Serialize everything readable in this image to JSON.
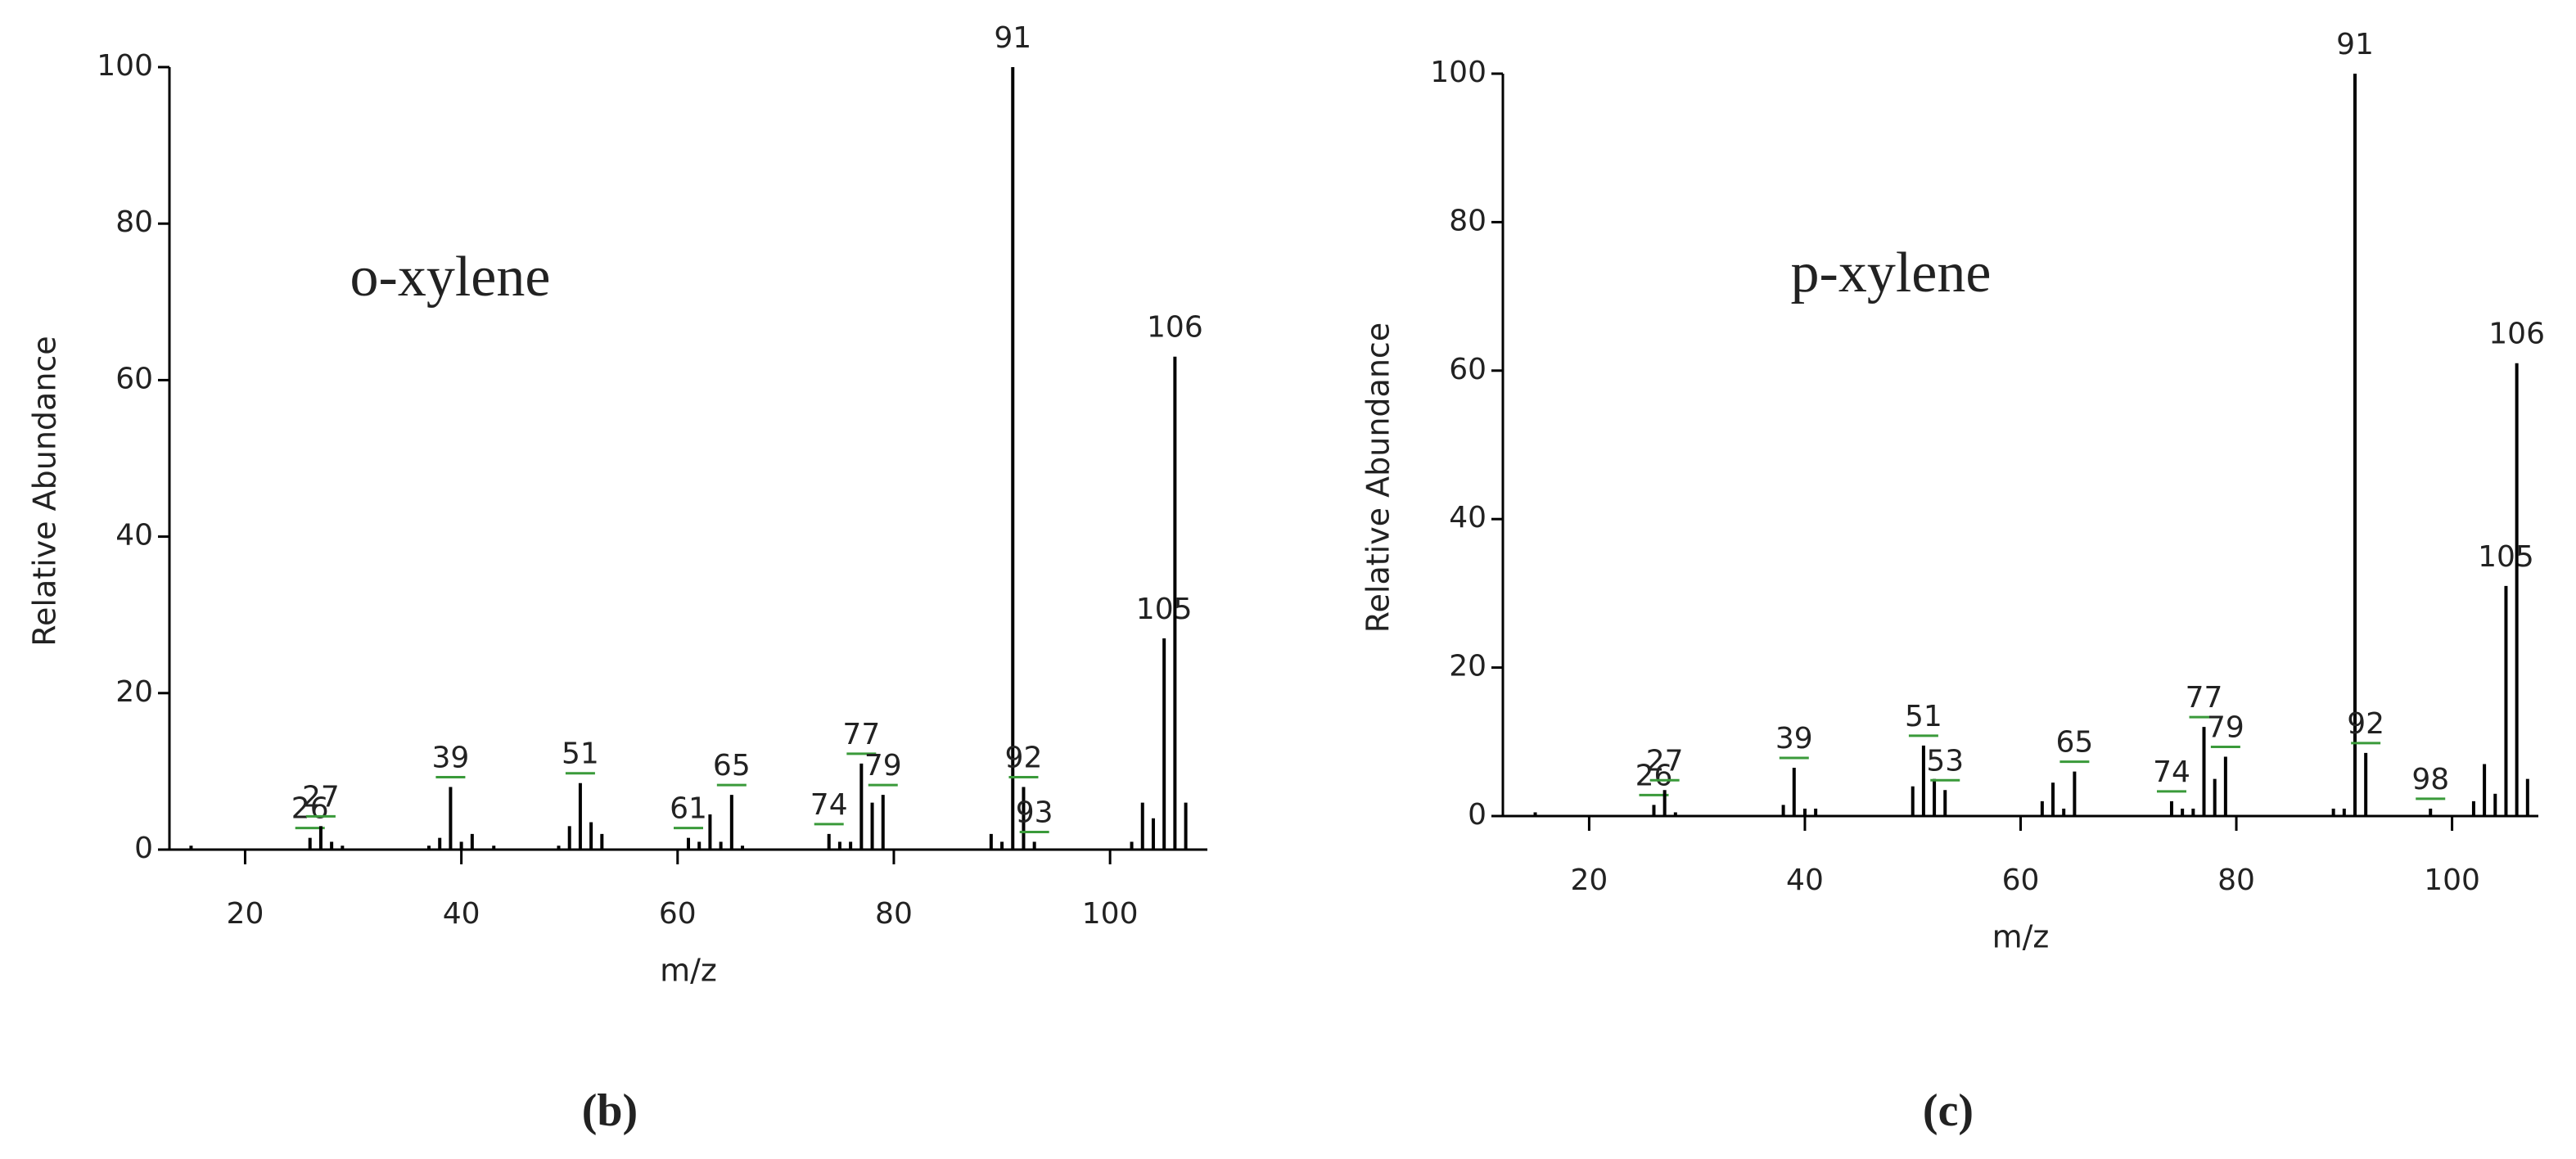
{
  "chart_data": [
    {
      "type": "bar",
      "annotation": "o-xylene",
      "xlabel": "m/z",
      "ylabel": "Relative Abundance",
      "panel_label": "(b)",
      "x": [
        15,
        26,
        27,
        28,
        29,
        37,
        38,
        39,
        40,
        41,
        43,
        49,
        50,
        51,
        52,
        53,
        61,
        62,
        63,
        64,
        65,
        66,
        74,
        75,
        76,
        77,
        78,
        79,
        89,
        90,
        91,
        92,
        93,
        102,
        103,
        104,
        105,
        106,
        107
      ],
      "values": [
        0.5,
        1.5,
        3,
        1,
        0.5,
        0.5,
        1.5,
        8,
        1,
        2,
        0.5,
        0.5,
        3,
        8.5,
        3.5,
        2,
        1.5,
        1,
        4.5,
        1,
        7,
        0.5,
        2,
        1,
        1,
        11,
        6,
        7,
        2,
        1,
        100,
        8,
        1,
        1,
        6,
        4,
        27,
        63,
        6
      ],
      "peak_labels": [
        null,
        "26",
        "27",
        null,
        null,
        null,
        null,
        "39",
        null,
        null,
        null,
        null,
        null,
        "51",
        null,
        null,
        "61",
        null,
        null,
        null,
        "65",
        null,
        "74",
        null,
        null,
        "77",
        null,
        "79",
        null,
        null,
        "91",
        "92",
        "93",
        null,
        null,
        null,
        "105",
        "106",
        null
      ],
      "color": "#000000",
      "label_leader_color": "#3a9a3a",
      "xlim": [
        13,
        109
      ],
      "xticks": [
        20,
        40,
        60,
        80,
        100
      ],
      "ylim": [
        0,
        100
      ],
      "yticks": [
        0,
        20,
        40,
        60,
        80,
        100
      ]
    },
    {
      "type": "bar",
      "annotation": "p-xylene",
      "xlabel": "m/z",
      "ylabel": "Relative Abundance",
      "panel_label": "(c)",
      "x": [
        15,
        26,
        27,
        28,
        38,
        39,
        40,
        41,
        50,
        51,
        52,
        53,
        62,
        63,
        64,
        65,
        74,
        75,
        76,
        77,
        78,
        79,
        89,
        90,
        91,
        92,
        98,
        102,
        103,
        104,
        105,
        106,
        107
      ],
      "values": [
        0.5,
        1.5,
        3.5,
        0.5,
        1.5,
        6.5,
        1,
        1,
        4,
        9.5,
        5,
        3.5,
        2,
        4.5,
        1,
        6,
        2,
        1,
        1,
        12,
        5,
        8,
        1,
        1,
        100,
        8.5,
        1,
        2,
        7,
        3,
        31,
        61,
        5
      ],
      "peak_labels": [
        null,
        "26",
        "27",
        null,
        null,
        "39",
        null,
        null,
        null,
        "51",
        null,
        "53",
        null,
        null,
        null,
        "65",
        "74",
        null,
        null,
        "77",
        null,
        "79",
        null,
        null,
        "91",
        "92",
        "98",
        null,
        null,
        null,
        "105",
        "106",
        null
      ],
      "color": "#000000",
      "label_leader_color": "#3a9a3a",
      "xlim": [
        12,
        108
      ],
      "xticks": [
        20,
        40,
        60,
        80,
        100
      ],
      "ylim": [
        0,
        100
      ],
      "yticks": [
        0,
        20,
        40,
        60,
        80,
        100
      ]
    }
  ]
}
